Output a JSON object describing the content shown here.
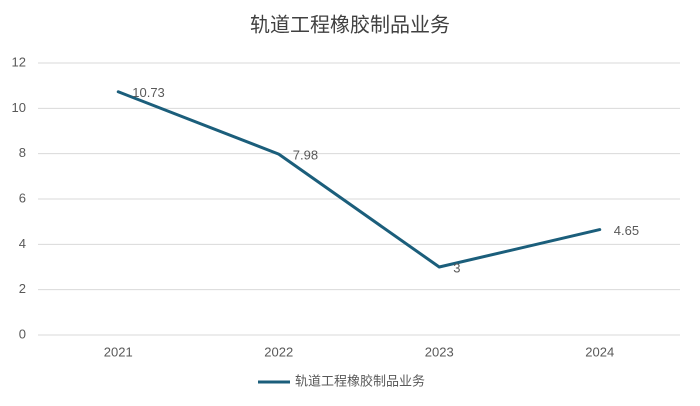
{
  "chart_data": {
    "type": "line",
    "title": "轨道工程橡胶制品业务",
    "categories": [
      "2021",
      "2022",
      "2023",
      "2024"
    ],
    "series": [
      {
        "name": "轨道工程橡胶制品业务",
        "color": "#1b5e7b",
        "values": [
          10.73,
          7.98,
          3,
          4.65
        ]
      }
    ],
    "ylim": [
      0,
      12
    ],
    "yticks": [
      0,
      2,
      4,
      6,
      8,
      10,
      12
    ],
    "grid": true,
    "legend": "bottom",
    "data_labels": true
  }
}
